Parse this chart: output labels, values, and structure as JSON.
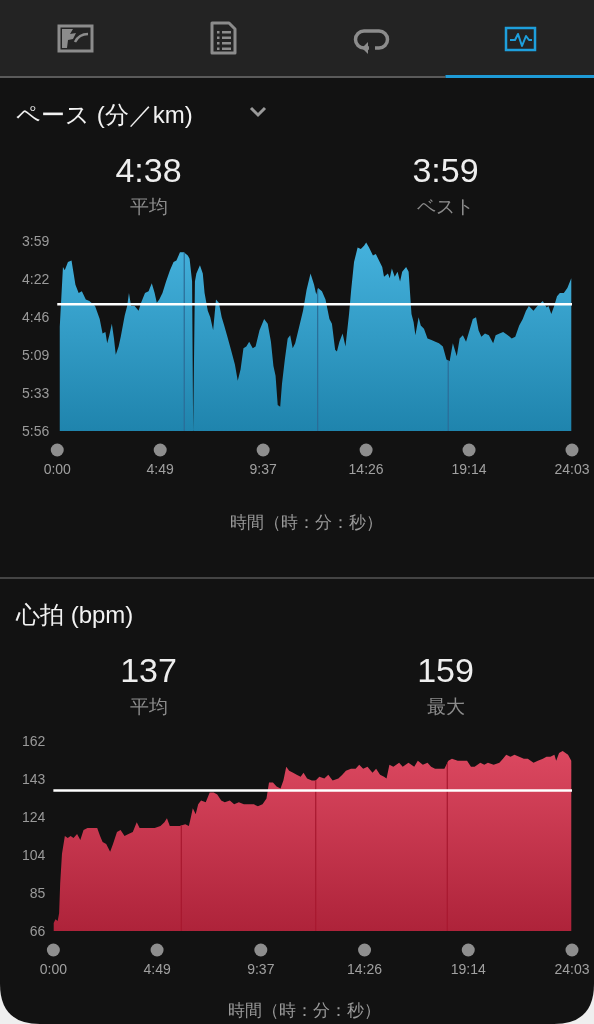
{
  "chart_data": [
    {
      "type": "area",
      "title": "ペース (分／km)",
      "xlabel": "時間（時：分：秒）",
      "annotations": [
        "4:38",
        "平均",
        "3:59",
        "ベスト"
      ],
      "x": [
        7,
        7,
        16,
        21,
        30,
        40,
        51,
        60,
        69,
        80,
        90,
        106,
        119,
        127,
        135,
        140,
        146,
        153,
        159,
        164,
        172,
        178,
        189,
        196,
        201,
        207,
        217,
        228,
        235,
        246,
        256,
        265,
        273,
        279,
        286,
        295,
        305,
        316,
        326,
        334,
        344,
        355,
        366,
        371,
        378,
        381,
        386,
        390,
        400,
        408,
        413,
        422,
        429,
        437,
        445,
        453,
        461,
        468,
        477,
        487,
        498,
        506,
        514,
        522,
        530,
        538,
        548,
        556,
        567,
        580,
        590,
        599,
        606,
        612,
        618,
        625,
        630,
        638,
        646,
        653,
        660,
        667,
        678,
        689,
        699,
        710,
        720,
        726,
        731,
        742,
        752,
        763,
        770,
        779,
        784,
        791,
        800,
        808,
        818,
        824,
        832,
        842,
        851,
        860,
        866,
        874,
        885,
        893,
        904,
        911,
        916,
        927,
        932,
        938,
        946,
        954,
        961,
        967,
        978,
        985,
        993,
        999,
        1004,
        1013,
        1019,
        1028,
        1038,
        1049,
        1060,
        1070,
        1081,
        1091,
        1100,
        1109,
        1120,
        1128,
        1137,
        1146,
        1157,
        1165,
        1174,
        1181,
        1189,
        1199,
        1210,
        1222,
        1229,
        1240,
        1250,
        1263,
        1274,
        1284,
        1295,
        1305,
        1314,
        1322,
        1335,
        1346,
        1361,
        1372,
        1377,
        1385,
        1393,
        1401,
        1409,
        1420,
        1430,
        1441,
        1441
      ],
      "series": [
        {
          "color": "#27a5d8",
          "values": [
            356,
            292,
            255,
            257,
            252,
            251,
            266,
            271,
            270,
            275,
            276,
            279,
            287,
            296,
            295,
            302,
            297,
            290,
            299,
            309,
            304,
            298,
            285,
            279,
            271,
            279,
            279,
            282,
            277,
            271,
            270,
            265,
            271,
            277,
            275,
            271,
            264,
            257,
            252,
            251,
            246,
            246,
            248,
            250,
            264,
            356,
            264,
            259,
            254,
            259,
            271,
            282,
            286,
            294,
            275,
            277,
            286,
            291,
            298,
            306,
            315,
            325,
            318,
            305,
            304,
            301,
            305,
            304,
            294,
            287,
            290,
            301,
            316,
            322,
            340,
            341,
            327,
            312,
            299,
            297,
            305,
            302,
            292,
            282,
            269,
            259,
            266,
            272,
            268,
            270,
            275,
            287,
            290,
            306,
            307,
            301,
            296,
            304,
            284,
            269,
            252,
            243,
            244,
            242,
            240,
            243,
            248,
            247,
            252,
            255,
            261,
            259,
            262,
            256,
            261,
            258,
            264,
            258,
            255,
            258,
            284,
            289,
            297,
            286,
            291,
            293,
            299,
            300,
            301,
            302,
            304,
            312,
            313,
            302,
            310,
            299,
            297,
            301,
            293,
            287,
            286,
            294,
            298,
            296,
            297,
            302,
            297,
            296,
            295,
            297,
            299,
            298,
            291,
            287,
            282,
            279,
            282,
            279,
            276,
            280,
            279,
            284,
            279,
            273,
            271,
            271,
            268,
            262,
            356
          ]
        }
      ],
      "xlim": [
        0,
        1443
      ],
      "xticks": [
        {
          "value": 0,
          "label": "0:00"
        },
        {
          "value": 288.6,
          "label": "4:49"
        },
        {
          "value": 577.2,
          "label": "9:37"
        },
        {
          "value": 865.8,
          "label": "14:26"
        },
        {
          "value": 1154.4,
          "label": "19:14"
        },
        {
          "value": 1443,
          "label": "24:03"
        }
      ],
      "ylim": [
        356,
        239
      ],
      "yticks": [
        {
          "value": 239,
          "label": "3:59"
        },
        {
          "value": 262.4,
          "label": "4:22"
        },
        {
          "value": 285.8,
          "label": "4:46"
        },
        {
          "value": 309.2,
          "label": "5:09"
        },
        {
          "value": 332.6,
          "label": "5:33"
        },
        {
          "value": 356,
          "label": "5:56"
        }
      ],
      "ref_lines": [
        {
          "axis": "x",
          "value": 356,
          "color": "#2b6c97"
        },
        {
          "axis": "x",
          "value": 730,
          "color": "#2b6c97"
        },
        {
          "axis": "x",
          "value": 1096,
          "color": "#2b6c97"
        },
        {
          "axis": "y",
          "value": 278,
          "color": "#ffffff"
        }
      ]
    },
    {
      "type": "area",
      "title": "心拍 (bpm)",
      "xlabel": "時間（時：分：秒）",
      "annotations": [
        "137",
        "平均",
        "159",
        "最大"
      ],
      "x": [
        1,
        6,
        12,
        16,
        19,
        24,
        32,
        40,
        48,
        56,
        66,
        75,
        84,
        95,
        108,
        122,
        130,
        137,
        147,
        158,
        166,
        177,
        187,
        198,
        209,
        221,
        232,
        240,
        253,
        266,
        282,
        298,
        309,
        316,
        324,
        337,
        351,
        367,
        377,
        382,
        388,
        396,
        403,
        411,
        424,
        435,
        446,
        456,
        467,
        477,
        491,
        503,
        516,
        530,
        546,
        558,
        569,
        582,
        593,
        600,
        611,
        621,
        632,
        640,
        648,
        656,
        667,
        677,
        688,
        696,
        706,
        719,
        730,
        740,
        754,
        765,
        777,
        793,
        804,
        814,
        828,
        841,
        851,
        862,
        874,
        888,
        898,
        909,
        920,
        927,
        935,
        946,
        962,
        972,
        988,
        1004,
        1014,
        1028,
        1041,
        1051,
        1062,
        1074,
        1088,
        1099,
        1109,
        1125,
        1141,
        1151,
        1162,
        1172,
        1188,
        1199,
        1209,
        1225,
        1241,
        1251,
        1260,
        1272,
        1283,
        1296,
        1309,
        1320,
        1336,
        1348,
        1362,
        1372,
        1383,
        1394,
        1399,
        1407,
        1417,
        1425,
        1432,
        1441
      ],
      "series": [
        {
          "color": "#d92c48",
          "values": [
            70,
            72,
            71,
            75,
            90,
            105,
            114,
            113,
            114,
            113,
            115,
            112,
            117,
            118,
            118,
            118,
            114,
            111,
            110,
            106,
            110,
            116,
            117,
            114,
            115,
            116,
            121,
            118,
            118,
            118,
            118,
            119,
            121,
            123,
            119,
            119,
            119,
            120,
            119,
            123,
            128,
            125,
            130,
            132,
            131,
            136,
            136,
            135,
            132,
            131,
            132,
            130,
            131,
            130,
            130,
            130,
            129,
            130,
            133,
            141,
            141,
            139,
            138,
            142,
            149,
            147,
            146,
            145,
            144,
            146,
            143,
            142,
            142,
            144,
            143,
            145,
            142,
            143,
            145,
            147,
            148,
            148,
            150,
            148,
            149,
            146,
            148,
            145,
            144,
            143,
            150,
            149,
            151,
            149,
            151,
            149,
            152,
            150,
            151,
            149,
            148,
            148,
            148,
            152,
            153,
            152,
            152,
            152,
            149,
            149,
            151,
            150,
            151,
            150,
            151,
            153,
            155,
            154,
            155,
            154,
            153,
            153,
            151,
            152,
            153,
            154,
            154,
            155,
            152,
            156,
            157,
            156,
            155,
            152
          ]
        }
      ],
      "xlim": [
        0,
        1443
      ],
      "xticks": [
        {
          "value": 0,
          "label": "0:00"
        },
        {
          "value": 288.6,
          "label": "4:49"
        },
        {
          "value": 577.2,
          "label": "9:37"
        },
        {
          "value": 865.8,
          "label": "14:26"
        },
        {
          "value": 1154.4,
          "label": "19:14"
        },
        {
          "value": 1443,
          "label": "24:03"
        }
      ],
      "ylim": [
        66,
        162
      ],
      "yticks": [
        66,
        {
          "value": 85.2,
          "label": "85"
        },
        {
          "value": 104.4,
          "label": "104"
        },
        {
          "value": 123.6,
          "label": "124"
        },
        {
          "value": 142.8,
          "label": "143"
        },
        162
      ],
      "ref_lines": [
        {
          "axis": "x",
          "value": 356,
          "color": "#a8182f"
        },
        {
          "axis": "x",
          "value": 730,
          "color": "#a8182f"
        },
        {
          "axis": "x",
          "value": 1096,
          "color": "#a8182f"
        },
        {
          "axis": "y",
          "value": 137,
          "color": "#ffffff"
        }
      ]
    }
  ]
}
